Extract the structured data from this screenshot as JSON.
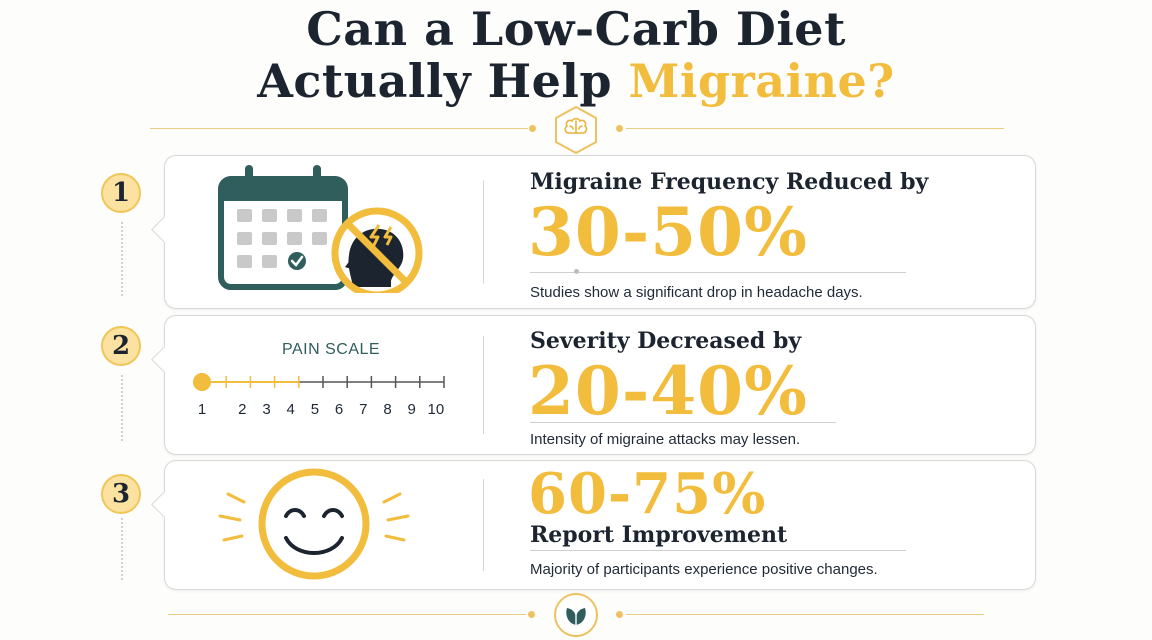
{
  "title": {
    "line1": "Can a Low-Carb Diet",
    "line2_start": "Actually Help",
    "line2_accent": "Migraine?"
  },
  "colors": {
    "accent": "#f2bc3c",
    "dark": "#1c2430",
    "teal": "#2f5e5c"
  },
  "icons": {
    "top_badge": "brain-icon",
    "bottom_badge": "leaf-icon"
  },
  "cards": [
    {
      "number": "1",
      "heading": "Migraine Frequency Reduced by",
      "value": "30-50%",
      "description": "Studies show a significant drop in headache days.",
      "icon": "calendar-no-headache-icon"
    },
    {
      "number": "2",
      "heading": "Severity Decreased by",
      "value": "20-40%",
      "description": "Intensity of migraine attacks may lessen.",
      "icon": "pain-scale",
      "pain_scale": {
        "label": "PAIN SCALE",
        "ticks": [
          "1",
          "2",
          "3",
          "4",
          "5",
          "6",
          "7",
          "8",
          "9",
          "10"
        ],
        "selected": 1
      }
    },
    {
      "number": "3",
      "value": "60-75%",
      "heading": "Report Improvement",
      "description": "Majority of participants experience positive changes.",
      "icon": "smiley-face-icon"
    }
  ]
}
